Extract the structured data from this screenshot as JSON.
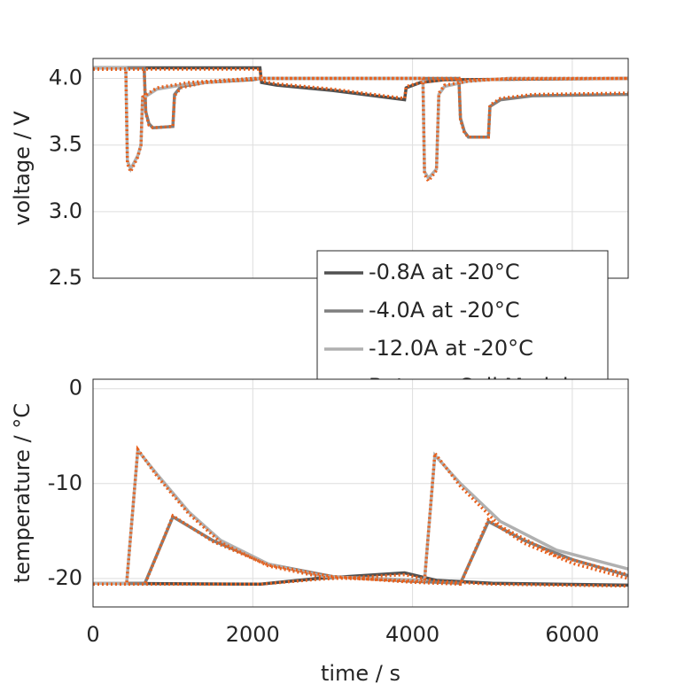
{
  "chart_data": [
    {
      "type": "line",
      "ylabel": "voltage / V",
      "xlim": [
        0,
        6700
      ],
      "xticks": [
        0,
        2000,
        4000,
        6000
      ],
      "xtick_labels": false,
      "ylim": [
        2.5,
        4.15
      ],
      "yticks": [
        2.5,
        {
          "value": 3,
          "label": "3.0"
        },
        3.5,
        {
          "value": 4,
          "label": "4.0"
        }
      ],
      "grid": true,
      "legend": "lower right",
      "series": [
        {
          "name": "-0.8A at -20°C",
          "color": "#505050",
          "style": "solid",
          "x": [
            0,
            2090,
            2110,
            2300,
            3000,
            3900,
            3920,
            4100,
            4400,
            6700
          ],
          "values": [
            4.08,
            4.08,
            3.97,
            3.95,
            3.91,
            3.84,
            3.93,
            3.97,
            3.99,
            4.0
          ]
        },
        {
          "name": "-4.0A at -20°C",
          "color": "#7f7f7f",
          "style": "solid",
          "x": [
            0,
            640,
            660,
            700,
            750,
            1000,
            1020,
            1100,
            1400,
            2000,
            2100,
            4580,
            4600,
            4650,
            4700,
            4950,
            4970,
            5100,
            5500,
            6700
          ],
          "values": [
            4.08,
            4.08,
            3.75,
            3.66,
            3.63,
            3.64,
            3.88,
            3.94,
            3.97,
            3.99,
            4.0,
            4.0,
            3.7,
            3.6,
            3.56,
            3.56,
            3.79,
            3.84,
            3.87,
            3.88
          ]
        },
        {
          "name": "-12.0A at -20°C",
          "color": "#b0b0b0",
          "style": "solid",
          "x": [
            0,
            410,
            430,
            470,
            560,
            600,
            620,
            800,
            1200,
            2000,
            4130,
            4150,
            4200,
            4300,
            4330,
            4400,
            4700,
            5200,
            6700
          ],
          "values": [
            4.08,
            4.08,
            3.38,
            3.32,
            3.42,
            3.5,
            3.85,
            3.92,
            3.96,
            4.0,
            4.0,
            3.3,
            3.25,
            3.32,
            3.88,
            3.94,
            3.98,
            4.0,
            4.0
          ]
        },
        {
          "name": "Batemo Cell Model",
          "color": "#e8601c",
          "style": "dotted",
          "x": [
            0,
            2090,
            2110,
            2300,
            3000,
            3900,
            3920,
            4100,
            4400,
            6700
          ],
          "values": [
            4.07,
            4.07,
            3.98,
            3.96,
            3.92,
            3.85,
            3.94,
            3.97,
            3.99,
            4.0
          ]
        },
        {
          "name": "Batemo Cell Model",
          "color": "#e8601c",
          "style": "dotted",
          "x": [
            0,
            640,
            660,
            700,
            750,
            1000,
            1020,
            1100,
            1400,
            2000,
            2100,
            4580,
            4600,
            4650,
            4700,
            4950,
            4970,
            5100,
            5500,
            6700
          ],
          "values": [
            4.07,
            4.07,
            3.74,
            3.65,
            3.63,
            3.64,
            3.87,
            3.93,
            3.97,
            3.99,
            4.0,
            4.0,
            3.69,
            3.59,
            3.56,
            3.56,
            3.8,
            3.85,
            3.88,
            3.89
          ]
        },
        {
          "name": "Batemo Cell Model",
          "color": "#e8601c",
          "style": "dotted",
          "x": [
            0,
            410,
            430,
            470,
            560,
            600,
            620,
            800,
            1200,
            2000,
            4130,
            4150,
            4200,
            4300,
            4330,
            4400,
            4700,
            5200,
            6700
          ],
          "values": [
            4.07,
            4.07,
            3.36,
            3.3,
            3.41,
            3.5,
            3.86,
            3.93,
            3.97,
            4.0,
            4.0,
            3.28,
            3.23,
            3.31,
            3.89,
            3.95,
            3.98,
            4.0,
            4.0
          ]
        }
      ]
    },
    {
      "type": "line",
      "xlabel": "time / s",
      "ylabel": "temperature / °C",
      "xlim": [
        0,
        6700
      ],
      "xticks": [
        0,
        2000,
        4000,
        6000
      ],
      "ylim": [
        -23,
        1
      ],
      "yticks": [
        -20,
        -10,
        0
      ],
      "grid": true,
      "series": [
        {
          "name": "-0.8A at -20°C",
          "color": "#505050",
          "style": "solid",
          "x": [
            0,
            2100,
            2800,
            3900,
            4300,
            5000,
            6700
          ],
          "values": [
            -20.5,
            -20.6,
            -20,
            -19.4,
            -20.2,
            -20.5,
            -20.7
          ]
        },
        {
          "name": "-4.0A at -20°C",
          "color": "#7f7f7f",
          "style": "solid",
          "x": [
            0,
            650,
            1000,
            1500,
            2200,
            3000,
            4000,
            4600,
            4950,
            5400,
            6000,
            6700
          ],
          "values": [
            -20.5,
            -20.5,
            -13.5,
            -16,
            -18.5,
            -19.8,
            -20.3,
            -20.5,
            -14,
            -16,
            -18,
            -19.7
          ]
        },
        {
          "name": "-12.0A at -20°C",
          "color": "#b0b0b0",
          "style": "solid",
          "x": [
            0,
            420,
            560,
            800,
            1200,
            1600,
            2200,
            2900,
            3500,
            4150,
            4280,
            4600,
            5100,
            5800,
            6700
          ],
          "values": [
            -20.5,
            -20.5,
            -6.5,
            -9,
            -13,
            -16,
            -18.5,
            -19.8,
            -20,
            -20.2,
            -7,
            -10,
            -14,
            -17,
            -19
          ]
        },
        {
          "name": "Batemo Cell Model",
          "color": "#e8601c",
          "style": "dotted",
          "x": [
            0,
            2100,
            2800,
            3900,
            4300,
            5000,
            6700
          ],
          "values": [
            -20.6,
            -20.6,
            -20.1,
            -19.6,
            -20.3,
            -20.6,
            -20.8
          ]
        },
        {
          "name": "Batemo Cell Model",
          "color": "#e8601c",
          "style": "dotted",
          "x": [
            0,
            650,
            1000,
            1500,
            2200,
            3000,
            4000,
            4600,
            4950,
            5400,
            6000,
            6700
          ],
          "values": [
            -20.6,
            -20.6,
            -13.4,
            -16.1,
            -18.6,
            -19.8,
            -20.4,
            -20.6,
            -13.8,
            -16.3,
            -18.4,
            -20
          ]
        },
        {
          "name": "Batemo Cell Model",
          "color": "#e8601c",
          "style": "dotted",
          "x": [
            0,
            420,
            560,
            800,
            1200,
            1600,
            2200,
            2900,
            3500,
            4150,
            4280,
            4600,
            5100,
            5800,
            6700
          ],
          "values": [
            -20.6,
            -20.6,
            -6.4,
            -9.2,
            -13.2,
            -16.2,
            -18.7,
            -19.9,
            -20.1,
            -20.3,
            -6.8,
            -10.3,
            -14.5,
            -17.6,
            -19.6
          ]
        }
      ]
    }
  ]
}
